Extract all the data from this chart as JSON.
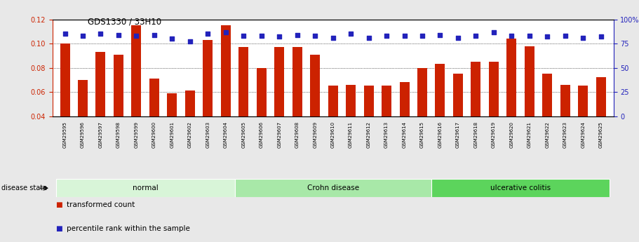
{
  "title": "GDS1330 / 33H10",
  "samples": [
    "GSM29595",
    "GSM29596",
    "GSM29597",
    "GSM29598",
    "GSM29599",
    "GSM29600",
    "GSM29601",
    "GSM29602",
    "GSM29603",
    "GSM29604",
    "GSM29605",
    "GSM29606",
    "GSM29607",
    "GSM29608",
    "GSM29609",
    "GSM29610",
    "GSM29611",
    "GSM29612",
    "GSM29613",
    "GSM29614",
    "GSM29615",
    "GSM29616",
    "GSM29617",
    "GSM29618",
    "GSM29619",
    "GSM29620",
    "GSM29621",
    "GSM29622",
    "GSM29623",
    "GSM29624",
    "GSM29625"
  ],
  "bar_values": [
    0.1,
    0.07,
    0.093,
    0.091,
    0.115,
    0.071,
    0.059,
    0.061,
    0.103,
    0.115,
    0.097,
    0.08,
    0.097,
    0.097,
    0.091,
    0.065,
    0.066,
    0.065,
    0.065,
    0.068,
    0.08,
    0.083,
    0.075,
    0.085,
    0.085,
    0.104,
    0.098,
    0.075,
    0.066,
    0.065,
    0.072
  ],
  "percentile_values": [
    85,
    83,
    85,
    84,
    83,
    84,
    80,
    77,
    85,
    87,
    83,
    83,
    82,
    84,
    83,
    81,
    85,
    81,
    83,
    83,
    83,
    84,
    81,
    83,
    87,
    83,
    83,
    82,
    83,
    81,
    82
  ],
  "groups": [
    {
      "label": "normal",
      "start": 0,
      "end": 10,
      "color": "#d8f5d8"
    },
    {
      "label": "Crohn disease",
      "start": 10,
      "end": 21,
      "color": "#a8e8a8"
    },
    {
      "label": "ulcerative colitis",
      "start": 21,
      "end": 31,
      "color": "#5cd45c"
    }
  ],
  "bar_color": "#cc2200",
  "dot_color": "#2222bb",
  "ylim_left": [
    0.04,
    0.12
  ],
  "ylim_right": [
    0,
    100
  ],
  "background_color": "#e8e8e8",
  "plot_bg_color": "#ffffff",
  "xtick_bg_color": "#c8c8c8",
  "grid_yticks": [
    0.06,
    0.08,
    0.1
  ],
  "left_yticks": [
    0.04,
    0.06,
    0.08,
    0.1,
    0.12
  ],
  "right_yticks": [
    0,
    25,
    50,
    75,
    100
  ],
  "right_yticklabels": [
    "0",
    "25",
    "50",
    "75",
    "100%"
  ],
  "legend_items": [
    {
      "color": "#cc2200",
      "label": "transformed count"
    },
    {
      "color": "#2222bb",
      "label": "percentile rank within the sample"
    }
  ]
}
